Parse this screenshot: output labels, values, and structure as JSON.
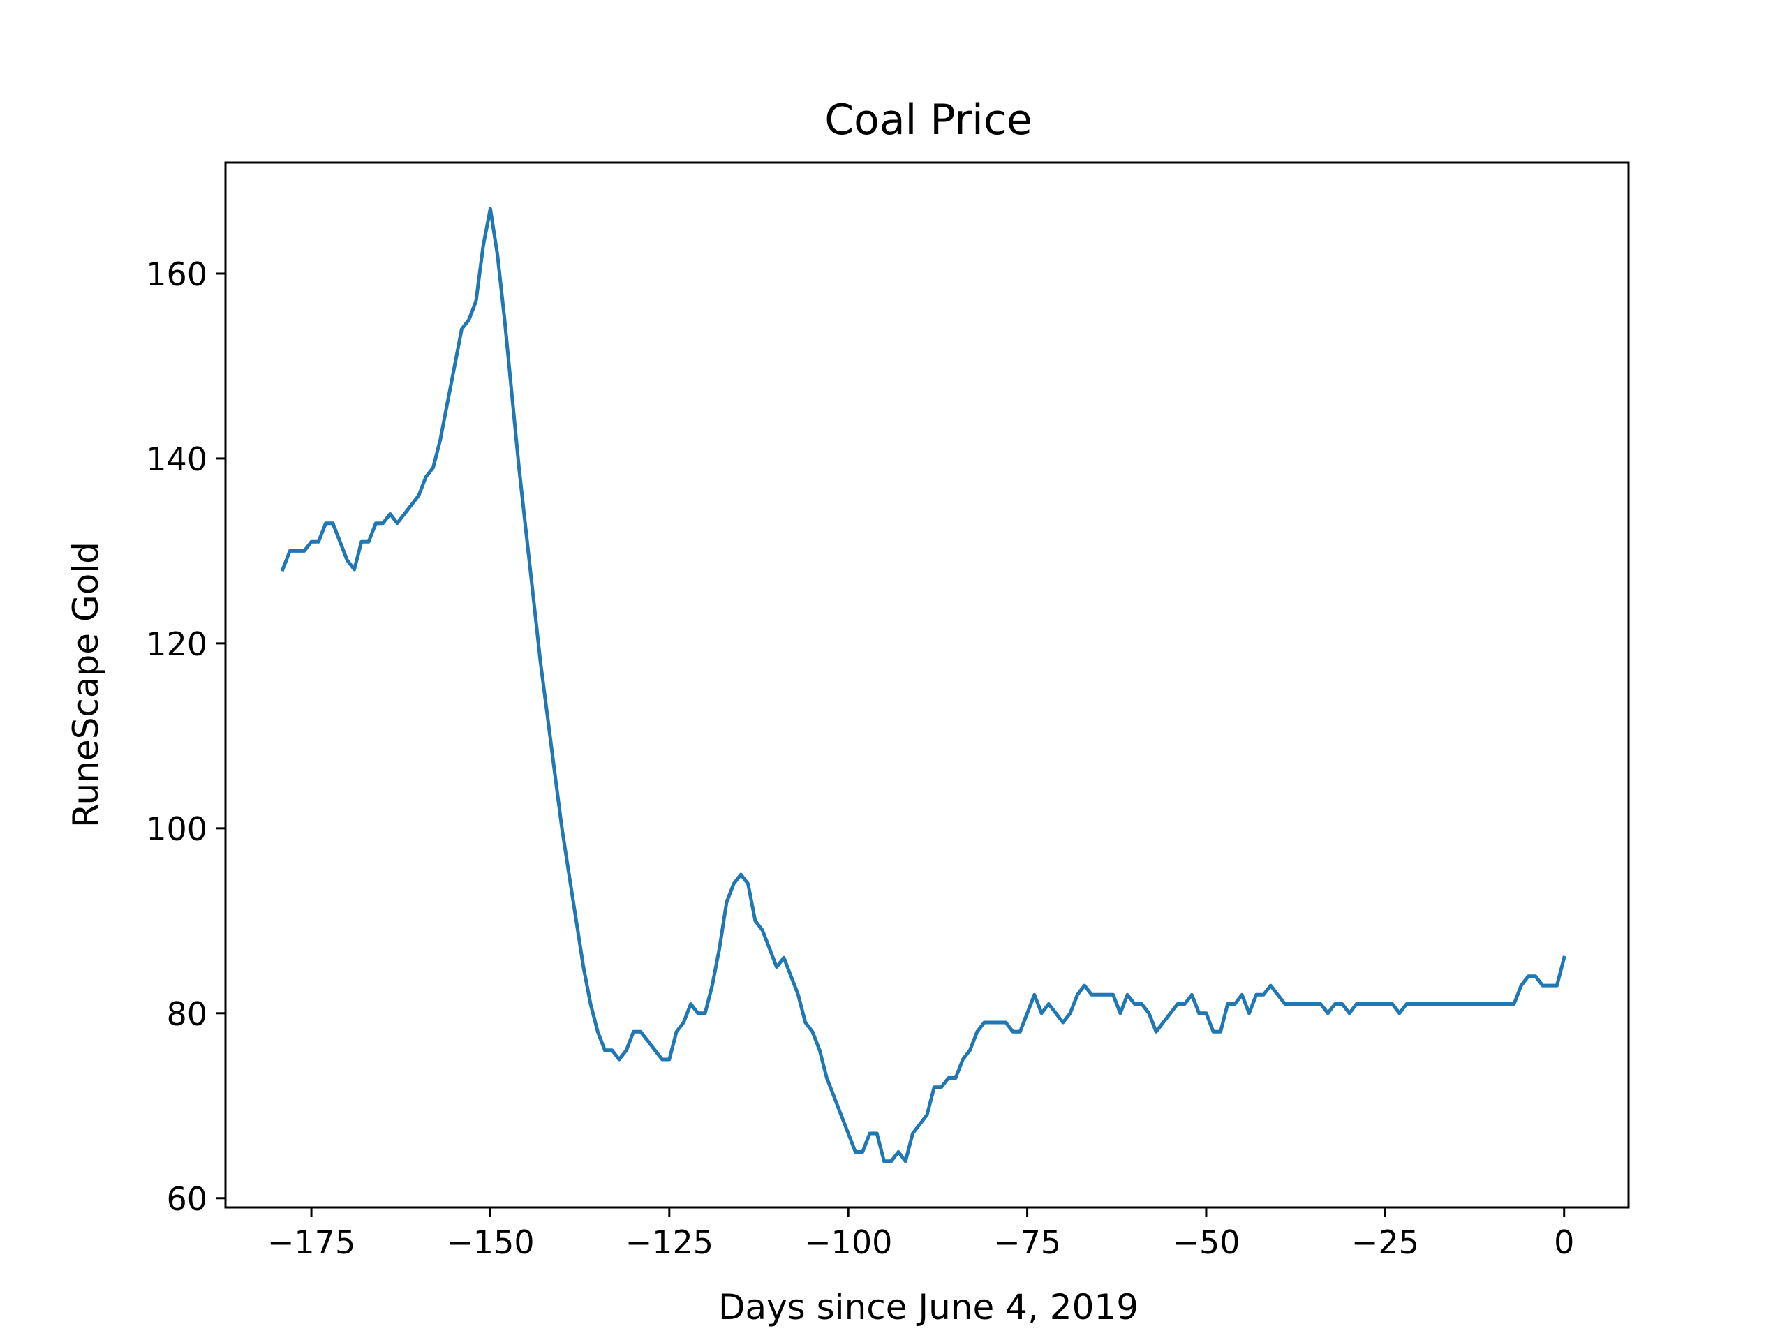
{
  "chart_data": {
    "type": "line",
    "title": "Coal Price",
    "xlabel": "Days since June 4, 2019",
    "ylabel": "RuneScape Gold",
    "xlim": [
      -187,
      9
    ],
    "ylim": [
      59,
      172
    ],
    "xticks": [
      -175,
      -150,
      -125,
      -100,
      -75,
      -50,
      -25,
      0
    ],
    "xtick_labels": [
      "−175",
      "−150",
      "−125",
      "−100",
      "−75",
      "−50",
      "−25",
      "0"
    ],
    "yticks": [
      60,
      80,
      100,
      120,
      140,
      160
    ],
    "ytick_labels": [
      "60",
      "80",
      "100",
      "120",
      "140",
      "160"
    ],
    "grid": false,
    "legend": "none",
    "line_color": "#1f77b4",
    "series": [
      {
        "x": [
          -179,
          -178,
          -177,
          -176,
          -175,
          -174,
          -173,
          -172,
          -171,
          -170,
          -169,
          -168,
          -167,
          -166,
          -165,
          -164,
          -163,
          -162,
          -161,
          -160,
          -159,
          -158,
          -157,
          -156,
          -155,
          -154,
          -153,
          -152,
          -151,
          -150,
          -149,
          -148,
          -147,
          -146,
          -145,
          -144,
          -143,
          -142,
          -141,
          -140,
          -139,
          -138,
          -137,
          -136,
          -135,
          -134,
          -133,
          -132,
          -131,
          -130,
          -129,
          -128,
          -127,
          -126,
          -125,
          -124,
          -123,
          -122,
          -121,
          -120,
          -119,
          -118,
          -117,
          -116,
          -115,
          -114,
          -113,
          -112,
          -111,
          -110,
          -109,
          -108,
          -107,
          -106,
          -105,
          -104,
          -103,
          -102,
          -101,
          -100,
          -99,
          -98,
          -97,
          -96,
          -95,
          -94,
          -93,
          -92,
          -91,
          -90,
          -89,
          -88,
          -87,
          -86,
          -85,
          -84,
          -83,
          -82,
          -81,
          -80,
          -79,
          -78,
          -77,
          -76,
          -75,
          -74,
          -73,
          -72,
          -71,
          -70,
          -69,
          -68,
          -67,
          -66,
          -65,
          -64,
          -63,
          -62,
          -61,
          -60,
          -59,
          -58,
          -57,
          -56,
          -55,
          -54,
          -53,
          -52,
          -51,
          -50,
          -49,
          -48,
          -47,
          -46,
          -45,
          -44,
          -43,
          -42,
          -41,
          -40,
          -39,
          -38,
          -37,
          -36,
          -35,
          -34,
          -33,
          -32,
          -31,
          -30,
          -29,
          -28,
          -27,
          -26,
          -25,
          -24,
          -23,
          -22,
          -21,
          -20,
          -19,
          -18,
          -17,
          -16,
          -15,
          -14,
          -13,
          -12,
          -11,
          -10,
          -9,
          -8,
          -7,
          -6,
          -5,
          -4,
          -3,
          -2,
          -1,
          0
        ],
        "y": [
          128,
          130,
          130,
          130,
          131,
          131,
          133,
          133,
          131,
          129,
          128,
          131,
          131,
          133,
          133,
          134,
          133,
          134,
          135,
          136,
          138,
          139,
          142,
          146,
          150,
          154,
          155,
          157,
          163,
          167,
          162,
          155,
          147,
          139,
          132,
          125,
          118,
          112,
          106,
          100,
          95,
          90,
          85,
          81,
          78,
          76,
          76,
          75,
          76,
          78,
          78,
          77,
          76,
          75,
          75,
          78,
          79,
          81,
          80,
          80,
          83,
          87,
          92,
          94,
          95,
          94,
          90,
          89,
          87,
          85,
          86,
          84,
          82,
          79,
          78,
          76,
          73,
          71,
          69,
          67,
          65,
          65,
          67,
          67,
          64,
          64,
          65,
          64,
          67,
          68,
          69,
          72,
          72,
          73,
          73,
          75,
          76,
          78,
          79,
          79,
          79,
          79,
          78,
          78,
          80,
          82,
          80,
          81,
          80,
          79,
          80,
          82,
          83,
          82,
          82,
          82,
          82,
          80,
          82,
          81,
          81,
          80,
          78,
          79,
          80,
          81,
          81,
          82,
          80,
          80,
          78,
          78,
          81,
          81,
          82,
          80,
          82,
          82,
          83,
          82,
          81,
          81,
          81,
          81,
          81,
          81,
          80,
          81,
          81,
          80,
          81,
          81,
          81,
          81,
          81,
          81,
          80,
          81,
          81,
          81,
          81,
          81,
          81,
          81,
          81,
          81,
          81,
          81,
          81,
          81,
          81,
          81,
          81,
          83,
          84,
          84,
          83,
          83,
          83,
          86
        ]
      }
    ]
  }
}
